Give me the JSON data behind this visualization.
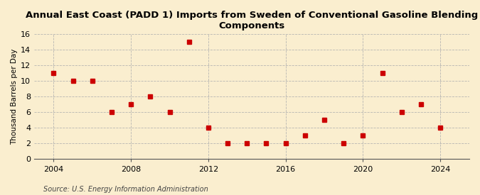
{
  "title": "Annual East Coast (PADD 1) Imports from Sweden of Conventional Gasoline Blending\nComponents",
  "ylabel": "Thousand Barrels per Day",
  "source": "Source: U.S. Energy Information Administration",
  "years": [
    2004,
    2005,
    2006,
    2007,
    2008,
    2009,
    2010,
    2011,
    2012,
    2013,
    2014,
    2015,
    2016,
    2017,
    2018,
    2019,
    2020,
    2021,
    2022,
    2023,
    2024
  ],
  "values": [
    11,
    10,
    10,
    6,
    7,
    8,
    6,
    15,
    4,
    2,
    2,
    2,
    2,
    3,
    5,
    2,
    3,
    11,
    6,
    7,
    4
  ],
  "marker_color": "#cc0000",
  "marker_size": 4,
  "background_color": "#faeecf",
  "grid_color": "#b0b0b0",
  "xlim": [
    2003.0,
    2025.5
  ],
  "ylim": [
    0,
    16
  ],
  "yticks": [
    0,
    2,
    4,
    6,
    8,
    10,
    12,
    14,
    16
  ],
  "xticks": [
    2004,
    2008,
    2012,
    2016,
    2020,
    2024
  ],
  "title_fontsize": 9.5,
  "label_fontsize": 7.5,
  "tick_fontsize": 8,
  "source_fontsize": 7
}
